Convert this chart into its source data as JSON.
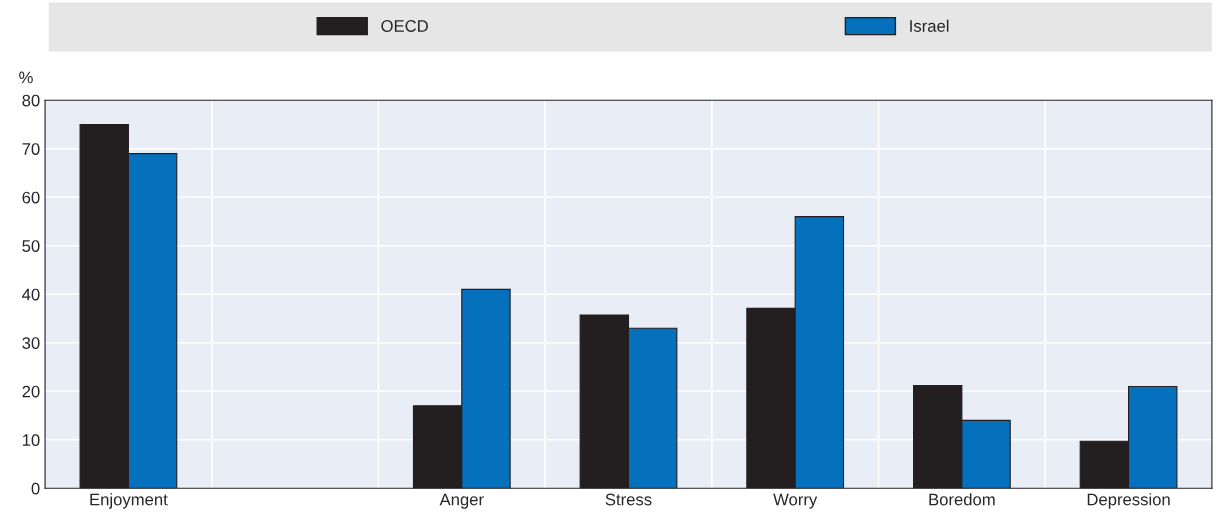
{
  "chart_data": {
    "type": "bar",
    "ylabel": "%",
    "categories": [
      "Enjoyment",
      null,
      "Anger",
      "Stress",
      "Worry",
      "Boredom",
      "Depression"
    ],
    "series": [
      {
        "name": "OECD",
        "color": "#231f20",
        "values": [
          75,
          null,
          17,
          35.7,
          37.1,
          21.2,
          9.7
        ]
      },
      {
        "name": "Israel",
        "color": "#0570bc",
        "values": [
          69,
          null,
          41,
          33,
          56,
          14,
          21
        ]
      }
    ],
    "ylim": [
      0,
      80
    ],
    "yticks": [
      0,
      10,
      20,
      30,
      40,
      50,
      60,
      70,
      80
    ],
    "grid": true,
    "legend": "top"
  }
}
